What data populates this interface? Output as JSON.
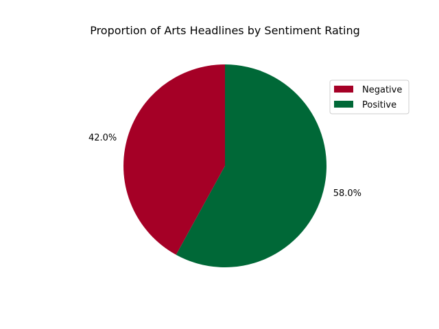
{
  "chart_data": {
    "type": "pie",
    "title": "Proportion of Arts Headlines by Sentiment Rating",
    "categories": [
      "Negative",
      "Positive"
    ],
    "values": [
      42.0,
      58.0
    ],
    "value_labels": [
      "42.0%",
      "58.0%"
    ],
    "colors": [
      "#a50026",
      "#006837"
    ],
    "start_angle_deg": 90,
    "direction": "counterclockwise",
    "legend": {
      "placement": "upper-right",
      "entries": [
        "Negative",
        "Positive"
      ]
    }
  }
}
